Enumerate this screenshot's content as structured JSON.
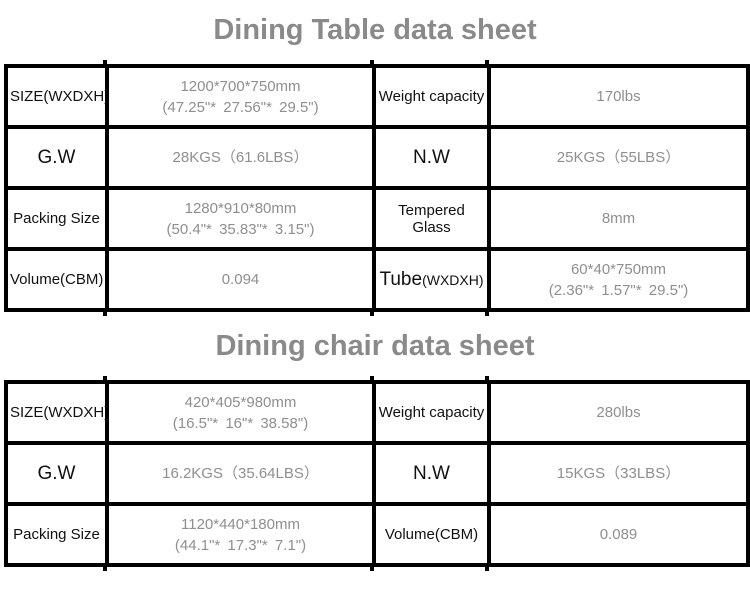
{
  "colors": {
    "title_gray": "#8a8a8a",
    "value_gray": "#8f8f8f",
    "label_black": "#111111",
    "border_black": "#000000",
    "background": "#ffffff"
  },
  "dining_table": {
    "title": "Dining Table data sheet",
    "rows": [
      {
        "label1": "SIZE(WXDXH)",
        "label1_sub": "",
        "value1_l1": "1200*700*750mm",
        "value1_l2": "(47.25\"* 27.56\"* 29.5\")",
        "label2": "Weight capacity",
        "label2_sub": "",
        "value2_l1": "170lbs",
        "value2_l2": ""
      },
      {
        "label1": "G.W",
        "label1_sub": "",
        "value1_l1": "28KGS（61.6LBS）",
        "value1_l2": "",
        "label2": "N.W",
        "label2_sub": "",
        "value2_l1": "25KGS（55LBS）",
        "value2_l2": ""
      },
      {
        "label1": "Packing Size",
        "label1_sub": "",
        "value1_l1": "1280*910*80mm",
        "value1_l2": "(50.4\"* 35.83\"* 3.15\")",
        "label2": "Tempered Glass",
        "label2_sub": "",
        "value2_l1": "8mm",
        "value2_l2": ""
      },
      {
        "label1": "Volume(CBM)",
        "label1_sub": "",
        "value1_l1": "0.094",
        "value1_l2": "",
        "label2": "Tube",
        "label2_sub": "(WXDXH)",
        "value2_l1": "60*40*750mm",
        "value2_l2": "(2.36\"* 1.57\"* 29.5\")"
      }
    ]
  },
  "dining_chair": {
    "title": "Dining chair data sheet",
    "rows": [
      {
        "label1": "SIZE(WXDXH)",
        "label1_sub": "",
        "value1_l1": "420*405*980mm",
        "value1_l2": "(16.5\"* 16\"* 38.58\")",
        "label2": "Weight capacity",
        "label2_sub": "",
        "value2_l1": "280lbs",
        "value2_l2": ""
      },
      {
        "label1": "G.W",
        "label1_sub": "",
        "value1_l1": "16.2KGS（35.64LBS）",
        "value1_l2": "",
        "label2": "N.W",
        "label2_sub": "",
        "value2_l1": "15KGS（33LBS）",
        "value2_l2": ""
      },
      {
        "label1": "Packing Size",
        "label1_sub": "",
        "value1_l1": "1120*440*180mm",
        "value1_l2": "(44.1\"* 17.3\"* 7.1\")",
        "label2": "Volume(CBM)",
        "label2_sub": "",
        "value2_l1": "0.089",
        "value2_l2": ""
      }
    ]
  }
}
